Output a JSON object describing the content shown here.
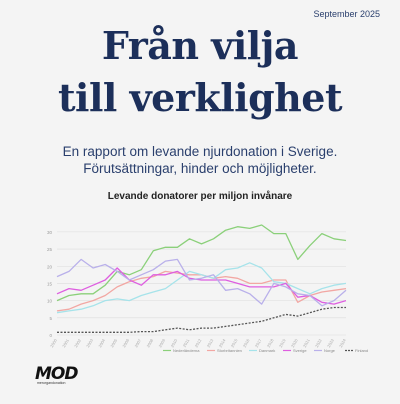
{
  "header": {
    "date": "September 2025"
  },
  "title": {
    "line1": "Från vilja",
    "line2": "till verklighet"
  },
  "subtitle": {
    "line1": "En rapport om levande njurdonation i Sverige.",
    "line2": "Förutsättningar, hinder och möjligheter."
  },
  "logo": {
    "mark": "MOD",
    "sub": "merorgandonation"
  },
  "colors": {
    "background": "#f4f4f4",
    "title": "#1c2f5a",
    "grid": "#dcdcdc"
  },
  "chart_data": {
    "type": "line",
    "title": "Levande donatorer per miljon invånare",
    "xlabel": "",
    "ylabel": "",
    "ylim": [
      0,
      32
    ],
    "yticks": [
      0,
      5,
      10,
      15,
      20,
      25,
      30
    ],
    "grid": true,
    "legend": "bottom",
    "x": [
      2000,
      2001,
      2002,
      2003,
      2004,
      2005,
      2006,
      2007,
      2008,
      2009,
      2010,
      2011,
      2012,
      2013,
      2014,
      2015,
      2016,
      2017,
      2018,
      2019,
      2020,
      2021,
      2022,
      2023,
      2024
    ],
    "series": [
      {
        "name": "Nederländerna",
        "color": "#8bd07a",
        "dashed": false,
        "values": [
          10,
          11.5,
          12,
          12,
          14.5,
          18.5,
          17.5,
          19,
          24.5,
          25.5,
          25.5,
          28,
          26.5,
          28,
          30.5,
          31.5,
          31,
          32,
          29.5,
          29.5,
          22,
          26,
          29.5,
          28,
          27.5
        ]
      },
      {
        "name": "Storbritannien",
        "color": "#f2a7a3",
        "dashed": false,
        "values": [
          7,
          7.5,
          9,
          10,
          11.5,
          14,
          15.5,
          16.5,
          17,
          18.5,
          18,
          17.5,
          17.5,
          16.5,
          17,
          16.5,
          15,
          15,
          16,
          16,
          9.5,
          11.5,
          12.5,
          13,
          13.5
        ]
      },
      {
        "name": "Danmark",
        "color": "#a6e3ea",
        "dashed": false,
        "values": [
          6.5,
          7,
          7.5,
          8.5,
          10,
          10.5,
          10,
          11.5,
          12.5,
          13.5,
          16,
          18.5,
          17.5,
          16.5,
          19,
          19.5,
          21,
          19.5,
          15.5,
          15,
          13.5,
          12,
          13.5,
          14.5,
          15
        ]
      },
      {
        "name": "Sverige",
        "color": "#de5ee0",
        "dashed": false,
        "values": [
          12,
          13.5,
          13,
          14.5,
          16,
          19.5,
          16,
          14.5,
          17.5,
          17.5,
          18.5,
          16.5,
          16,
          16,
          16,
          15,
          14,
          14,
          14,
          15,
          11,
          11.5,
          9.5,
          9,
          10
        ]
      },
      {
        "name": "Norge",
        "color": "#b9b0ea",
        "dashed": false,
        "values": [
          17,
          18.5,
          22,
          19.5,
          20.5,
          18.5,
          16,
          17.5,
          19,
          21.5,
          22,
          16,
          16.5,
          17.5,
          13,
          13.5,
          12,
          9,
          15,
          14,
          12,
          11.5,
          8.5,
          10,
          13
        ]
      },
      {
        "name": "Finland",
        "color": "#555555",
        "dashed": true,
        "values": [
          0.8,
          0.8,
          0.8,
          0.8,
          0.8,
          0.8,
          0.8,
          1,
          1,
          1.5,
          2,
          1.5,
          2,
          2,
          2.5,
          3,
          3.5,
          4,
          5,
          6,
          5.5,
          6.5,
          7.5,
          8,
          8
        ]
      }
    ]
  }
}
